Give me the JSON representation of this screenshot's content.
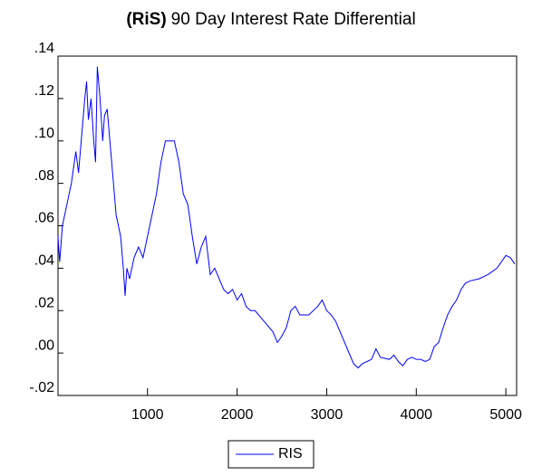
{
  "chart_data": {
    "type": "line",
    "title_prefix": "(RiS)",
    "title": "90 Day Interest Rate Differential",
    "x": [
      0,
      20,
      50,
      100,
      150,
      200,
      230,
      260,
      300,
      320,
      340,
      370,
      400,
      420,
      440,
      470,
      500,
      520,
      550,
      580,
      620,
      650,
      700,
      730,
      750,
      770,
      800,
      850,
      900,
      950,
      1000,
      1050,
      1100,
      1150,
      1200,
      1250,
      1300,
      1350,
      1400,
      1450,
      1500,
      1550,
      1600,
      1650,
      1700,
      1750,
      1800,
      1850,
      1900,
      1950,
      2000,
      2050,
      2100,
      2150,
      2200,
      2300,
      2400,
      2450,
      2500,
      2550,
      2600,
      2650,
      2700,
      2800,
      2900,
      2950,
      3000,
      3050,
      3100,
      3150,
      3200,
      3250,
      3300,
      3350,
      3400,
      3450,
      3500,
      3550,
      3600,
      3700,
      3750,
      3800,
      3850,
      3900,
      3950,
      4000,
      4050,
      4100,
      4150,
      4200,
      4250,
      4300,
      4350,
      4400,
      4450,
      4500,
      4550,
      4600,
      4700,
      4800,
      4900,
      5000,
      5050,
      5100
    ],
    "series": [
      {
        "name": "RIS",
        "color": "#0000ff",
        "values": [
          0.055,
          0.043,
          0.06,
          0.07,
          0.08,
          0.095,
          0.085,
          0.1,
          0.12,
          0.128,
          0.11,
          0.12,
          0.1,
          0.09,
          0.135,
          0.12,
          0.1,
          0.112,
          0.115,
          0.1,
          0.08,
          0.065,
          0.055,
          0.04,
          0.027,
          0.04,
          0.035,
          0.045,
          0.05,
          0.045,
          0.055,
          0.065,
          0.075,
          0.09,
          0.1,
          0.1,
          0.1,
          0.09,
          0.075,
          0.07,
          0.055,
          0.042,
          0.05,
          0.055,
          0.037,
          0.04,
          0.035,
          0.03,
          0.028,
          0.03,
          0.025,
          0.028,
          0.022,
          0.02,
          0.02,
          0.015,
          0.01,
          0.005,
          0.008,
          0.012,
          0.02,
          0.022,
          0.018,
          0.018,
          0.022,
          0.025,
          0.02,
          0.018,
          0.015,
          0.01,
          0.005,
          0.0,
          -0.005,
          -0.007,
          -0.005,
          -0.004,
          -0.003,
          0.002,
          -0.002,
          -0.003,
          -0.001,
          -0.004,
          -0.006,
          -0.003,
          -0.002,
          -0.003,
          -0.003,
          -0.004,
          -0.003,
          0.003,
          0.005,
          0.012,
          0.018,
          0.022,
          0.025,
          0.03,
          0.033,
          0.034,
          0.035,
          0.037,
          0.04,
          0.046,
          0.045,
          0.042
        ]
      }
    ],
    "xlim": [
      1,
      5120
    ],
    "xticks": [
      1000,
      2000,
      3000,
      4000,
      5000
    ],
    "ylim": [
      -0.02,
      0.14
    ],
    "yticks": [
      {
        "value": -0.02,
        "label": "-.02"
      },
      {
        "value": 0.0,
        "label": ".00"
      },
      {
        "value": 0.02,
        "label": ".02"
      },
      {
        "value": 0.04,
        "label": ".04"
      },
      {
        "value": 0.06,
        "label": ".06"
      },
      {
        "value": 0.08,
        "label": ".08"
      },
      {
        "value": 0.1,
        "label": ".10"
      },
      {
        "value": 0.12,
        "label": ".12"
      },
      {
        "value": 0.14,
        "label": ".14"
      }
    ],
    "grid": false
  }
}
